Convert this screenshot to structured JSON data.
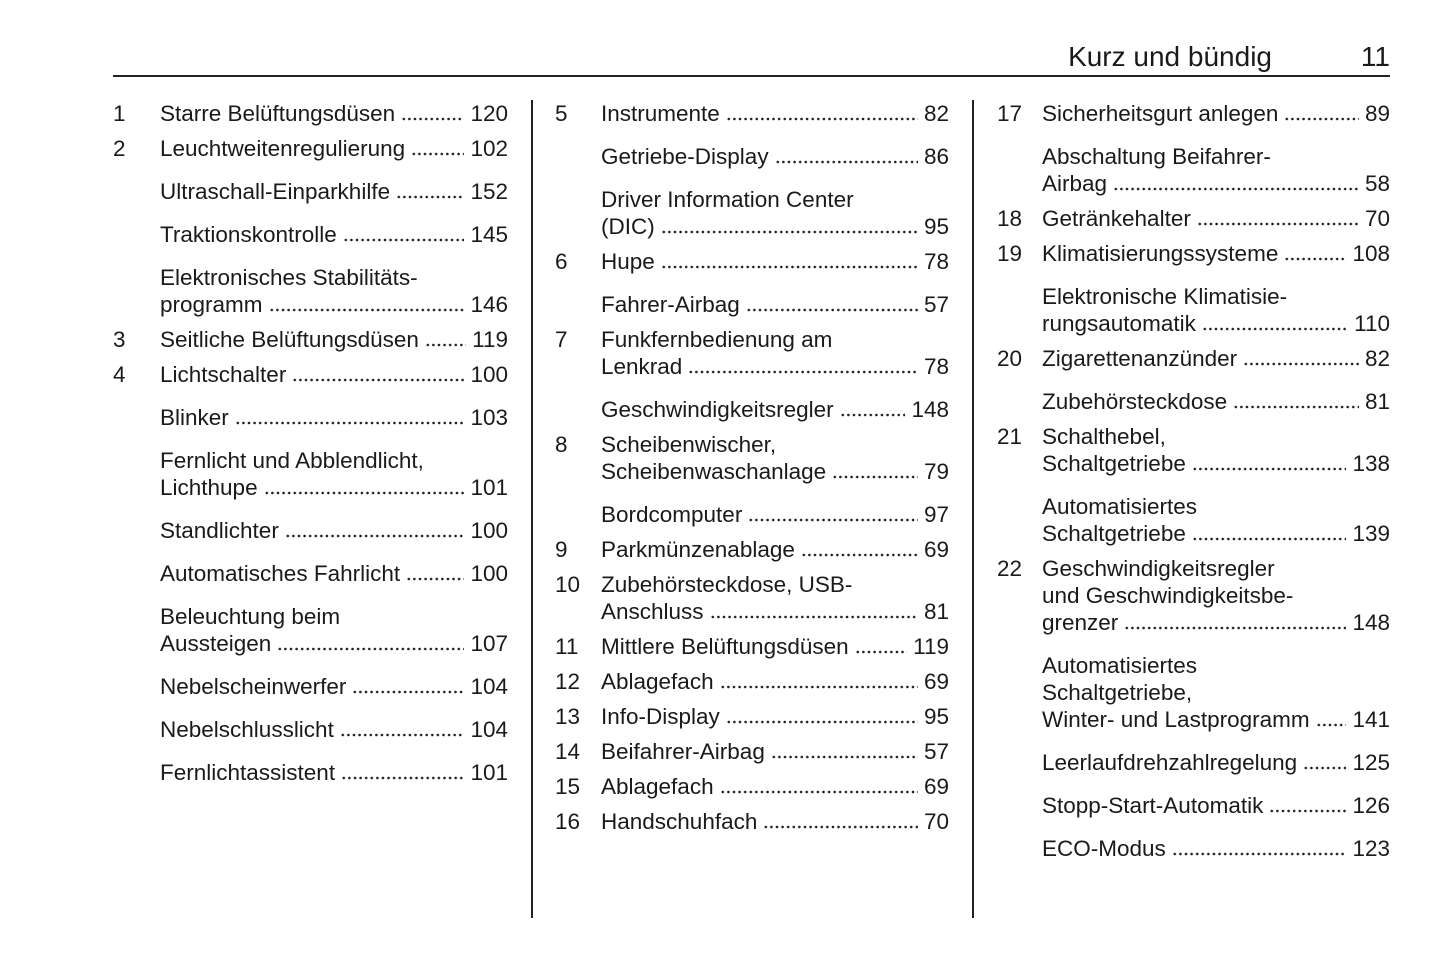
{
  "header": {
    "title": "Kurz und bündig",
    "page_number": "11"
  },
  "columns": [
    [
      {
        "num": "1",
        "lines": [
          "Starre Belüftungsdüsen"
        ],
        "page": "120"
      },
      {
        "num": "2",
        "lines": [
          "Leuchtweitenregulierung"
        ],
        "page": "102"
      },
      {
        "num": "",
        "lines": [
          "Ultraschall-Einparkhilfe"
        ],
        "page": "152"
      },
      {
        "num": "",
        "lines": [
          "Traktionskontrolle"
        ],
        "page": "145"
      },
      {
        "num": "",
        "lines": [
          "Elektronisches Stabilitäts-",
          "programm"
        ],
        "page": "146"
      },
      {
        "num": "3",
        "lines": [
          "Seitliche Belüftungsdüsen"
        ],
        "page": "119"
      },
      {
        "num": "4",
        "lines": [
          "Lichtschalter"
        ],
        "page": "100"
      },
      {
        "num": "",
        "lines": [
          "Blinker"
        ],
        "page": "103"
      },
      {
        "num": "",
        "lines": [
          "Fernlicht und Abblendlicht,",
          "Lichthupe"
        ],
        "page": "101"
      },
      {
        "num": "",
        "lines": [
          "Standlichter"
        ],
        "page": "100"
      },
      {
        "num": "",
        "lines": [
          "Automatisches Fahrlicht"
        ],
        "page": "100"
      },
      {
        "num": "",
        "lines": [
          "Beleuchtung beim",
          "Aussteigen"
        ],
        "page": "107"
      },
      {
        "num": "",
        "lines": [
          "Nebelscheinwerfer"
        ],
        "page": "104"
      },
      {
        "num": "",
        "lines": [
          "Nebelschlusslicht"
        ],
        "page": "104"
      },
      {
        "num": "",
        "lines": [
          "Fernlichtassistent"
        ],
        "page": "101"
      }
    ],
    [
      {
        "num": "5",
        "lines": [
          "Instrumente"
        ],
        "page": "82"
      },
      {
        "num": "",
        "lines": [
          "Getriebe-Display"
        ],
        "page": "86"
      },
      {
        "num": "",
        "lines": [
          "Driver Information Center",
          "(DIC)"
        ],
        "page": "95"
      },
      {
        "num": "6",
        "lines": [
          "Hupe"
        ],
        "page": "78"
      },
      {
        "num": "",
        "lines": [
          "Fahrer-Airbag"
        ],
        "page": "57"
      },
      {
        "num": "7",
        "lines": [
          "Funkfernbedienung am",
          "Lenkrad"
        ],
        "page": "78"
      },
      {
        "num": "",
        "lines": [
          "Geschwindigkeitsregler"
        ],
        "page": "148"
      },
      {
        "num": "8",
        "lines": [
          "Scheibenwischer,",
          "Scheibenwaschanlage"
        ],
        "page": "79"
      },
      {
        "num": "",
        "lines": [
          "Bordcomputer"
        ],
        "page": "97"
      },
      {
        "num": "9",
        "lines": [
          "Parkmünzenablage"
        ],
        "page": "69"
      },
      {
        "num": "10",
        "lines": [
          "Zubehörsteckdose, USB-",
          "Anschluss"
        ],
        "page": "81"
      },
      {
        "num": "11",
        "lines": [
          "Mittlere Belüftungsdüsen"
        ],
        "page": "119"
      },
      {
        "num": "12",
        "lines": [
          "Ablagefach"
        ],
        "page": "69"
      },
      {
        "num": "13",
        "lines": [
          "Info-Display"
        ],
        "page": "95"
      },
      {
        "num": "14",
        "lines": [
          "Beifahrer-Airbag"
        ],
        "page": "57"
      },
      {
        "num": "15",
        "lines": [
          "Ablagefach"
        ],
        "page": "69"
      },
      {
        "num": "16",
        "lines": [
          "Handschuhfach"
        ],
        "page": "70"
      }
    ],
    [
      {
        "num": "17",
        "lines": [
          "Sicherheitsgurt anlegen"
        ],
        "page": "89"
      },
      {
        "num": "",
        "lines": [
          "Abschaltung Beifahrer-",
          "Airbag"
        ],
        "page": "58"
      },
      {
        "num": "18",
        "lines": [
          "Getränkehalter"
        ],
        "page": "70"
      },
      {
        "num": "19",
        "lines": [
          "Klimatisierungssysteme"
        ],
        "page": "108"
      },
      {
        "num": "",
        "lines": [
          "Elektronische Klimatisie-",
          "rungsautomatik"
        ],
        "page": "110"
      },
      {
        "num": "20",
        "lines": [
          "Zigarettenanzünder"
        ],
        "page": "82"
      },
      {
        "num": "",
        "lines": [
          "Zubehörsteckdose"
        ],
        "page": "81"
      },
      {
        "num": "21",
        "lines": [
          "Schalthebel,",
          "Schaltgetriebe"
        ],
        "page": "138"
      },
      {
        "num": "",
        "lines": [
          "Automatisiertes",
          "Schaltgetriebe"
        ],
        "page": "139"
      },
      {
        "num": "22",
        "lines": [
          "Geschwindigkeitsregler",
          "und Geschwindigkeitsbe-",
          "grenzer"
        ],
        "page": "148"
      },
      {
        "num": "",
        "lines": [
          "Automatisiertes",
          "Schaltgetriebe,",
          "Winter- und Lastprogramm"
        ],
        "page": "141"
      },
      {
        "num": "",
        "lines": [
          "Leerlaufdrehzahlregelung"
        ],
        "page": "125"
      },
      {
        "num": "",
        "lines": [
          "Stopp-Start-Automatik"
        ],
        "page": "126"
      },
      {
        "num": "",
        "lines": [
          "ECO-Modus"
        ],
        "page": "123"
      }
    ]
  ]
}
